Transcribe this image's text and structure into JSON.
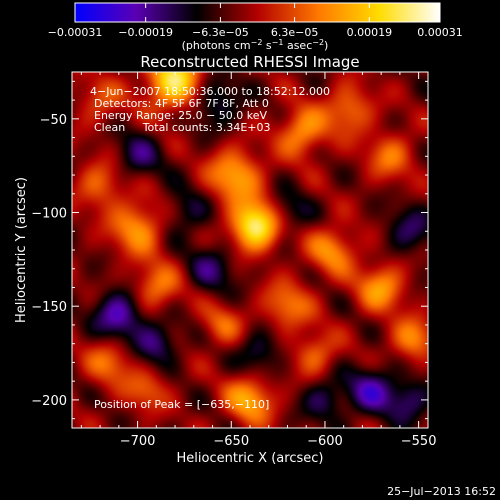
{
  "chart_data": {
    "type": "heatmap",
    "title": "Reconstructed RHESSI Image",
    "xlabel": "Heliocentric X (arcsec)",
    "ylabel": "Heliocentric Y (arcsec)",
    "xlim": [
      -735,
      -545
    ],
    "ylim": [
      -215,
      -25
    ],
    "xticks": [
      {
        "value": -700,
        "label": "−700"
      },
      {
        "value": -650,
        "label": "−650"
      },
      {
        "value": -600,
        "label": "−600"
      },
      {
        "value": -550,
        "label": "−550"
      }
    ],
    "yticks": [
      {
        "value": -50,
        "label": "−50"
      },
      {
        "value": -100,
        "label": "−100"
      },
      {
        "value": -150,
        "label": "−150"
      },
      {
        "value": -200,
        "label": "−200"
      }
    ],
    "colorbar": {
      "colormap": [
        "#0000ff",
        "#5a00b4",
        "#000000",
        "#b40000",
        "#ff7800",
        "#ffdc00",
        "#ffffff"
      ],
      "range": [
        -0.00031,
        0.00031
      ],
      "ticks": [
        {
          "value": -0.00031,
          "label": "−0.00031"
        },
        {
          "value": -0.00019,
          "label": "−0.00019"
        },
        {
          "value": -6.3e-05,
          "label": "−6.3e−05"
        },
        {
          "value": 6.3e-05,
          "label": "6.3e−05"
        },
        {
          "value": 0.00019,
          "label": "0.00019"
        },
        {
          "value": 0.00031,
          "label": "0.00031"
        }
      ],
      "unit_parts": [
        "(photons cm",
        "−2",
        " s",
        "−1",
        " asec",
        "−2",
        ")"
      ]
    },
    "annotations": [
      "4−Jun−2007 18:50:36.000 to 18:52:12.000",
      "Detectors: 4F 5F 6F 7F 8F, Att 0",
      "Energy Range: 25.0 − 50.0 keV",
      "Clean     Total counts: 3.34E+03"
    ],
    "peak_label": "Position of Peak = [−635,−110]",
    "peak": [
      -635,
      -110
    ],
    "sources": [
      {
        "x": -637,
        "y": -107,
        "amp": 1.0,
        "s": 9
      },
      {
        "x": -680,
        "y": -30,
        "amp": 0.85,
        "s": 11
      },
      {
        "x": -648,
        "y": -80,
        "amp": 0.6,
        "s": 10
      },
      {
        "x": -612,
        "y": -57,
        "amp": 0.55,
        "s": 9
      },
      {
        "x": -587,
        "y": -45,
        "amp": 0.45,
        "s": 9
      },
      {
        "x": -565,
        "y": -70,
        "amp": 0.4,
        "s": 9
      },
      {
        "x": -596,
        "y": -120,
        "amp": 0.5,
        "s": 9
      },
      {
        "x": -570,
        "y": -140,
        "amp": 0.55,
        "s": 9
      },
      {
        "x": -553,
        "y": -168,
        "amp": 0.5,
        "s": 8
      },
      {
        "x": -620,
        "y": -150,
        "amp": 0.45,
        "s": 9
      },
      {
        "x": -605,
        "y": -175,
        "amp": 0.4,
        "s": 8
      },
      {
        "x": -700,
        "y": -108,
        "amp": 0.55,
        "s": 10
      },
      {
        "x": -720,
        "y": -85,
        "amp": 0.4,
        "s": 9
      },
      {
        "x": -690,
        "y": -140,
        "amp": 0.45,
        "s": 9
      },
      {
        "x": -715,
        "y": -180,
        "amp": 0.4,
        "s": 9
      },
      {
        "x": -695,
        "y": -195,
        "amp": 0.35,
        "s": 8
      },
      {
        "x": -640,
        "y": -200,
        "amp": 0.6,
        "s": 9
      },
      {
        "x": -655,
        "y": -160,
        "amp": 0.35,
        "s": 8
      },
      {
        "x": -720,
        "y": -40,
        "amp": 0.3,
        "s": 9
      },
      {
        "x": -660,
        "y": -40,
        "amp": -0.4,
        "s": 10
      },
      {
        "x": -700,
        "y": -70,
        "amp": -0.35,
        "s": 9
      },
      {
        "x": -710,
        "y": -155,
        "amp": -0.6,
        "s": 9
      },
      {
        "x": -690,
        "y": -170,
        "amp": -0.45,
        "s": 8
      },
      {
        "x": -660,
        "y": -130,
        "amp": -0.35,
        "s": 9
      },
      {
        "x": -635,
        "y": -175,
        "amp": -0.35,
        "s": 8
      },
      {
        "x": -620,
        "y": -100,
        "amp": -0.3,
        "s": 8
      },
      {
        "x": -575,
        "y": -195,
        "amp": -0.5,
        "s": 9
      },
      {
        "x": -555,
        "y": -200,
        "amp": -0.4,
        "s": 8
      },
      {
        "x": -555,
        "y": -110,
        "amp": -0.35,
        "s": 9
      },
      {
        "x": -600,
        "y": -200,
        "amp": -0.35,
        "s": 8
      },
      {
        "x": -675,
        "y": -100,
        "amp": -0.3,
        "s": 9
      }
    ]
  },
  "footer": {
    "timestamp": "25−Jul−2013 16:52"
  }
}
